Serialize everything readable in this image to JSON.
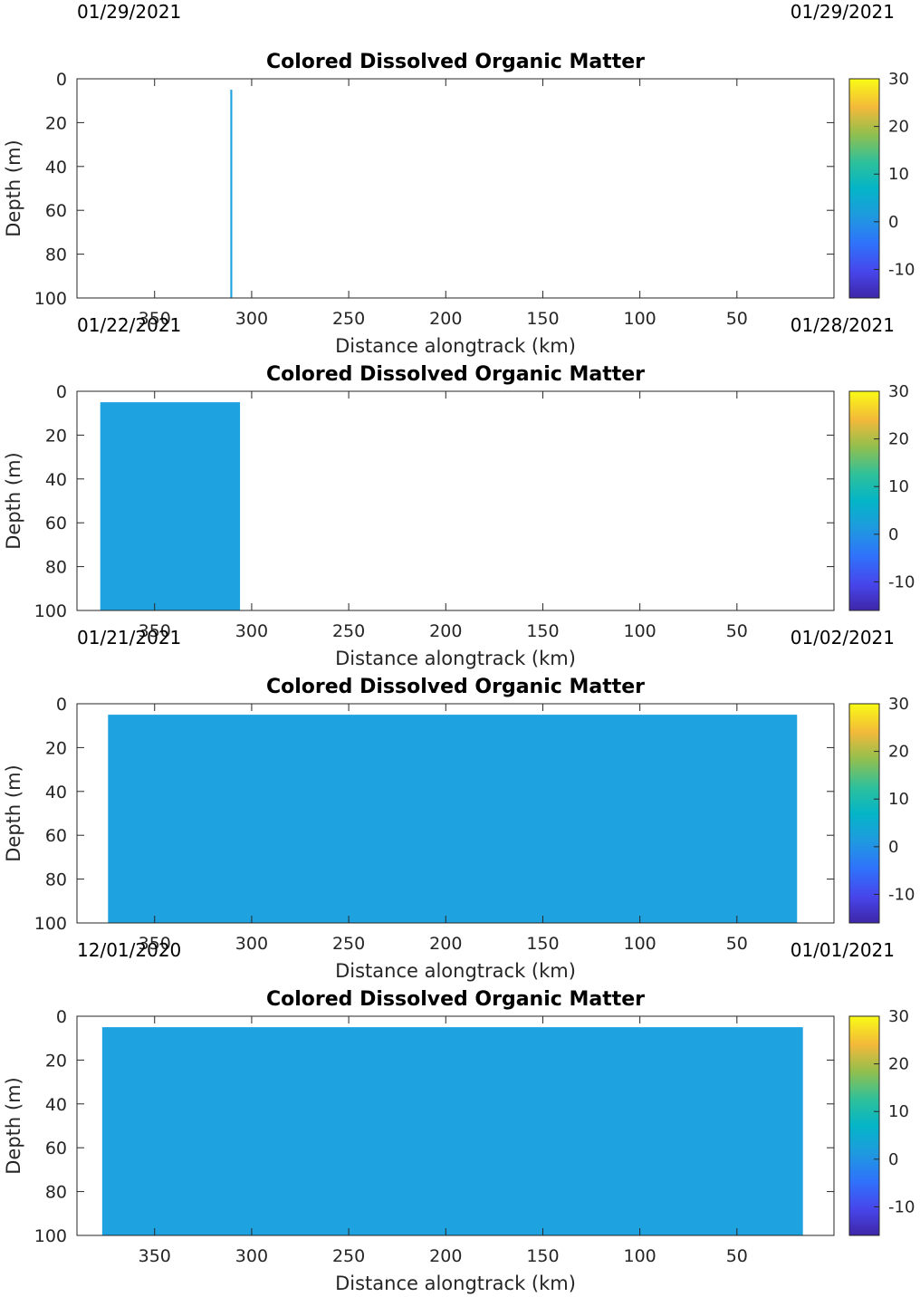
{
  "date_labels": {
    "top_left": "01/29/2021",
    "top_right": "01/29/2021"
  },
  "colors": {
    "fill": "#1fa3e0",
    "axes": "#262626"
  },
  "colorbar": {
    "range": [
      -16,
      30
    ],
    "ticks": [
      "30",
      "20",
      "10",
      "0",
      "-10"
    ],
    "tick_values": [
      30,
      20,
      10,
      0,
      -10
    ],
    "colormap": "parula"
  },
  "chart_data": [
    {
      "type": "heatmap",
      "title": "Colored Dissolved Organic Matter",
      "xlabel": "Distance alongtrack (km)",
      "ylabel": "Depth (m)",
      "xlim": [
        390,
        0
      ],
      "ylim": [
        100,
        0
      ],
      "xticks": [
        "350",
        "300",
        "250",
        "200",
        "150",
        "100",
        "50"
      ],
      "xtick_values": [
        350,
        300,
        250,
        200,
        150,
        100,
        50
      ],
      "yticks": [
        "0",
        "20",
        "40",
        "60",
        "80",
        "100"
      ],
      "ytick_values": [
        0,
        20,
        40,
        60,
        80,
        100
      ],
      "data_extent": {
        "x_from": 311,
        "x_to": 310,
        "depth_from": 5,
        "depth_to": 100
      },
      "value": 0,
      "date_left": "01/22/2021",
      "date_right": "01/28/2021"
    },
    {
      "type": "heatmap",
      "title": "Colored Dissolved Organic Matter",
      "xlabel": "Distance alongtrack (km)",
      "ylabel": "Depth (m)",
      "xlim": [
        390,
        0
      ],
      "ylim": [
        100,
        0
      ],
      "xticks": [
        "350",
        "300",
        "250",
        "200",
        "150",
        "100",
        "50"
      ],
      "xtick_values": [
        350,
        300,
        250,
        200,
        150,
        100,
        50
      ],
      "yticks": [
        "0",
        "20",
        "40",
        "60",
        "80",
        "100"
      ],
      "ytick_values": [
        0,
        20,
        40,
        60,
        80,
        100
      ],
      "data_extent": {
        "x_from": 378,
        "x_to": 306,
        "depth_from": 5,
        "depth_to": 100
      },
      "value": 0,
      "date_left": "01/21/2021",
      "date_right": "01/02/2021"
    },
    {
      "type": "heatmap",
      "title": "Colored Dissolved Organic Matter",
      "xlabel": "Distance alongtrack (km)",
      "ylabel": "Depth (m)",
      "xlim": [
        390,
        0
      ],
      "ylim": [
        100,
        0
      ],
      "xticks": [
        "350",
        "300",
        "250",
        "200",
        "150",
        "100",
        "50"
      ],
      "xtick_values": [
        350,
        300,
        250,
        200,
        150,
        100,
        50
      ],
      "yticks": [
        "0",
        "20",
        "40",
        "60",
        "80",
        "100"
      ],
      "ytick_values": [
        0,
        20,
        40,
        60,
        80,
        100
      ],
      "data_extent": {
        "x_from": 374,
        "x_to": 19,
        "depth_from": 5,
        "depth_to": 100
      },
      "value": 0,
      "date_left": "12/01/2020",
      "date_right": "01/01/2021"
    },
    {
      "type": "heatmap",
      "title": "Colored Dissolved Organic Matter",
      "xlabel": "Distance alongtrack (km)",
      "ylabel": "Depth (m)",
      "xlim": [
        390,
        0
      ],
      "ylim": [
        100,
        0
      ],
      "xticks": [
        "350",
        "300",
        "250",
        "200",
        "150",
        "100",
        "50"
      ],
      "xtick_values": [
        350,
        300,
        250,
        200,
        150,
        100,
        50
      ],
      "yticks": [
        "0",
        "20",
        "40",
        "60",
        "80",
        "100"
      ],
      "ytick_values": [
        0,
        20,
        40,
        60,
        80,
        100
      ],
      "data_extent": {
        "x_from": 377,
        "x_to": 16,
        "depth_from": 5,
        "depth_to": 100
      },
      "value": 0
    }
  ]
}
